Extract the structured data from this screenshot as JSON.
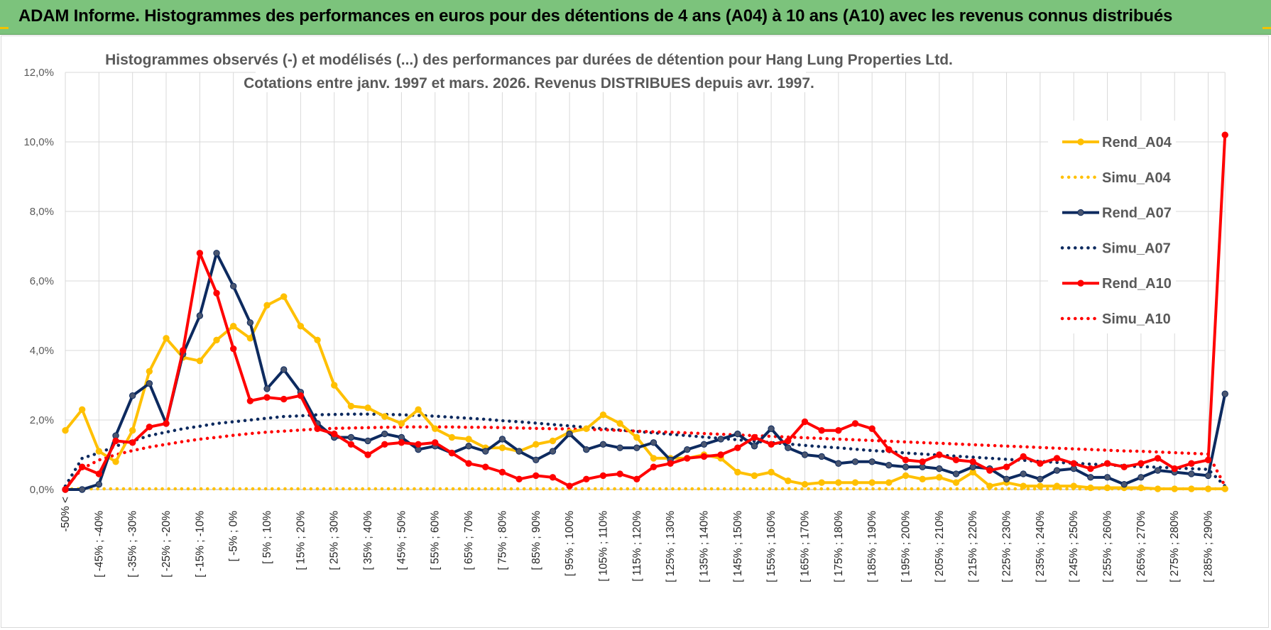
{
  "banner": {
    "title": "ADAM Informe. Histogrammes des performances en euros pour des détentions de 4 ans (A04) à 10 ans (A10) avec les revenus connus distribués"
  },
  "colors": {
    "banner_bg": "#7cc37c",
    "a04": "#FFC000",
    "a07": "#0D2A5F",
    "a10": "#FF0000",
    "grid": "#D9D9D9",
    "axis_text": "#595959"
  },
  "chart_data": {
    "type": "line",
    "title_line1": "Histogrammes observés (-) et modélisés (...) des performances par durées de détention pour Hang Lung Properties Ltd.",
    "title_line2": "Cotations entre janv. 1997 et mars. 2026.  Revenus DISTRIBUES depuis avr. 1997.",
    "ylim": [
      0,
      12
    ],
    "y_ticks": [
      0,
      2,
      4,
      6,
      8,
      10,
      12
    ],
    "y_tick_labels": [
      "0,0%",
      "2,0%",
      "4,0%",
      "6,0%",
      "8,0%",
      "10,0%",
      "12,0%"
    ],
    "x_tick_labels": [
      "-50% <",
      "[ -45% ; -40%",
      "[ -35% ; -30%",
      "[ -25% ; -20%",
      "[ -15% ; -10%",
      "[ -5% ; 0%",
      "[ 5% ; 10%",
      "[ 15% ; 20%",
      "[ 25% ; 30%",
      "[ 35% ; 40%",
      "[ 45% ; 50%",
      "[ 55% ; 60%",
      "[ 65% ; 70%",
      "[ 75% ; 80%",
      "[ 85% ; 90%",
      "[ 95% ; 100%",
      "[ 105% ; 110%",
      "[ 115% ; 120%",
      "[ 125% ; 130%",
      "[ 135% ; 140%",
      "[ 145% ; 150%",
      "[ 155% ; 160%",
      "[ 165% ; 170%",
      "[ 175% ; 180%",
      "[ 185% ; 190%",
      "[ 195% ; 200%",
      "[ 205% ; 210%",
      "[ 215% ; 220%",
      "[ 225% ; 230%",
      "[ 235% ; 240%",
      "[ 245% ; 250%",
      "[ 255% ; 260%",
      "[ 265% ; 270%",
      "[ 275% ; 280%",
      "[ 285% ; 290%"
    ],
    "n_bins": 70,
    "legend": [
      "Rend_A04",
      "Simu_A04",
      "Rend_A07",
      "Simu_A07",
      "Rend_A10",
      "Simu_A10"
    ],
    "series": [
      {
        "name": "Rend_A04",
        "style": "solid",
        "color": "#FFC000",
        "values": [
          1.7,
          2.3,
          1.1,
          0.8,
          1.7,
          3.4,
          4.35,
          3.8,
          3.7,
          4.3,
          4.7,
          4.35,
          5.3,
          5.55,
          4.7,
          4.3,
          3.0,
          2.4,
          2.35,
          2.1,
          1.9,
          2.3,
          1.75,
          1.5,
          1.45,
          1.2,
          1.2,
          1.1,
          1.3,
          1.4,
          1.65,
          1.75,
          2.15,
          1.9,
          1.5,
          0.9,
          0.9,
          0.9,
          1.0,
          0.9,
          0.5,
          0.4,
          0.5,
          0.25,
          0.15,
          0.2,
          0.2,
          0.2,
          0.2,
          0.2,
          0.4,
          0.3,
          0.35,
          0.2,
          0.5,
          0.1,
          0.2,
          0.1,
          0.1,
          0.1,
          0.1,
          0.05,
          0.05,
          0.05,
          0.05,
          0.02,
          0.02,
          0.02,
          0.02,
          0.02
        ]
      },
      {
        "name": "Simu_A04",
        "style": "dotted",
        "color": "#FFC000",
        "values": [
          0.02,
          0.02,
          0.02,
          0.02,
          0.02,
          0.02,
          0.02,
          0.02,
          0.02,
          0.02,
          0.02,
          0.02,
          0.02,
          0.02,
          0.02,
          0.02,
          0.02,
          0.02,
          0.02,
          0.02,
          0.02,
          0.02,
          0.02,
          0.02,
          0.02,
          0.02,
          0.02,
          0.02,
          0.02,
          0.02,
          0.02,
          0.02,
          0.02,
          0.02,
          0.02,
          0.02,
          0.02,
          0.02,
          0.02,
          0.02,
          0.02,
          0.02,
          0.02,
          0.02,
          0.02,
          0.02,
          0.02,
          0.02,
          0.02,
          0.02,
          0.02,
          0.02,
          0.02,
          0.02,
          0.02,
          0.02,
          0.02,
          0.02,
          0.02,
          0.02,
          0.02,
          0.02,
          0.02,
          0.02,
          0.02,
          0.02,
          0.02,
          0.02,
          0.02,
          0.02
        ]
      },
      {
        "name": "Rend_A07",
        "style": "solid",
        "color": "#0D2A5F",
        "values": [
          0.0,
          0.0,
          0.15,
          1.55,
          2.7,
          3.05,
          1.9,
          3.9,
          5.0,
          6.8,
          5.85,
          4.8,
          2.9,
          3.45,
          2.8,
          1.9,
          1.5,
          1.5,
          1.4,
          1.6,
          1.5,
          1.15,
          1.25,
          1.05,
          1.25,
          1.1,
          1.45,
          1.1,
          0.85,
          1.1,
          1.6,
          1.15,
          1.3,
          1.2,
          1.2,
          1.35,
          0.85,
          1.15,
          1.3,
          1.45,
          1.6,
          1.25,
          1.75,
          1.2,
          1.0,
          0.95,
          0.75,
          0.8,
          0.8,
          0.7,
          0.65,
          0.65,
          0.6,
          0.45,
          0.65,
          0.6,
          0.3,
          0.45,
          0.3,
          0.55,
          0.6,
          0.35,
          0.35,
          0.15,
          0.35,
          0.55,
          0.5,
          0.45,
          0.4,
          2.75
        ]
      },
      {
        "name": "Simu_A07",
        "style": "dotted",
        "color": "#0D2A5F",
        "values": [
          0.1,
          0.9,
          1.05,
          1.25,
          1.4,
          1.55,
          1.65,
          1.75,
          1.82,
          1.9,
          1.95,
          2.0,
          2.05,
          2.1,
          2.12,
          2.15,
          2.16,
          2.17,
          2.17,
          2.16,
          2.15,
          2.13,
          2.11,
          2.08,
          2.05,
          2.02,
          1.98,
          1.95,
          1.91,
          1.87,
          1.83,
          1.79,
          1.75,
          1.71,
          1.67,
          1.63,
          1.59,
          1.55,
          1.51,
          1.47,
          1.43,
          1.39,
          1.35,
          1.31,
          1.27,
          1.23,
          1.2,
          1.16,
          1.12,
          1.09,
          1.05,
          1.02,
          0.99,
          0.96,
          0.93,
          0.9,
          0.87,
          0.84,
          0.81,
          0.78,
          0.76,
          0.73,
          0.71,
          0.68,
          0.66,
          0.64,
          0.62,
          0.6,
          0.58,
          0.1
        ]
      },
      {
        "name": "Rend_A10",
        "style": "solid",
        "color": "#FF0000",
        "values": [
          0.0,
          0.65,
          0.45,
          1.4,
          1.35,
          1.8,
          1.9,
          4.0,
          6.8,
          5.65,
          4.05,
          2.55,
          2.65,
          2.6,
          2.7,
          1.75,
          1.6,
          1.3,
          1.0,
          1.3,
          1.35,
          1.3,
          1.35,
          1.05,
          0.75,
          0.65,
          0.5,
          0.3,
          0.4,
          0.35,
          0.1,
          0.3,
          0.4,
          0.45,
          0.3,
          0.65,
          0.75,
          0.9,
          0.95,
          1.0,
          1.2,
          1.5,
          1.3,
          1.4,
          1.95,
          1.7,
          1.7,
          1.9,
          1.75,
          1.15,
          0.85,
          0.8,
          1.0,
          0.85,
          0.8,
          0.55,
          0.65,
          0.95,
          0.75,
          0.9,
          0.75,
          0.6,
          0.75,
          0.65,
          0.75,
          0.9,
          0.6,
          0.75,
          0.85,
          10.2
        ]
      },
      {
        "name": "Simu_A10",
        "style": "dotted",
        "color": "#FF0000",
        "values": [
          0.05,
          0.6,
          0.85,
          1.0,
          1.12,
          1.22,
          1.3,
          1.38,
          1.45,
          1.5,
          1.56,
          1.61,
          1.65,
          1.68,
          1.71,
          1.74,
          1.76,
          1.77,
          1.78,
          1.79,
          1.8,
          1.8,
          1.8,
          1.8,
          1.79,
          1.79,
          1.78,
          1.77,
          1.76,
          1.75,
          1.74,
          1.73,
          1.72,
          1.7,
          1.68,
          1.66,
          1.65,
          1.63,
          1.61,
          1.59,
          1.57,
          1.55,
          1.53,
          1.51,
          1.49,
          1.47,
          1.45,
          1.43,
          1.41,
          1.39,
          1.37,
          1.35,
          1.33,
          1.31,
          1.29,
          1.27,
          1.25,
          1.23,
          1.21,
          1.19,
          1.17,
          1.15,
          1.13,
          1.11,
          1.1,
          1.08,
          1.06,
          1.04,
          1.02,
          0.1
        ]
      }
    ]
  }
}
